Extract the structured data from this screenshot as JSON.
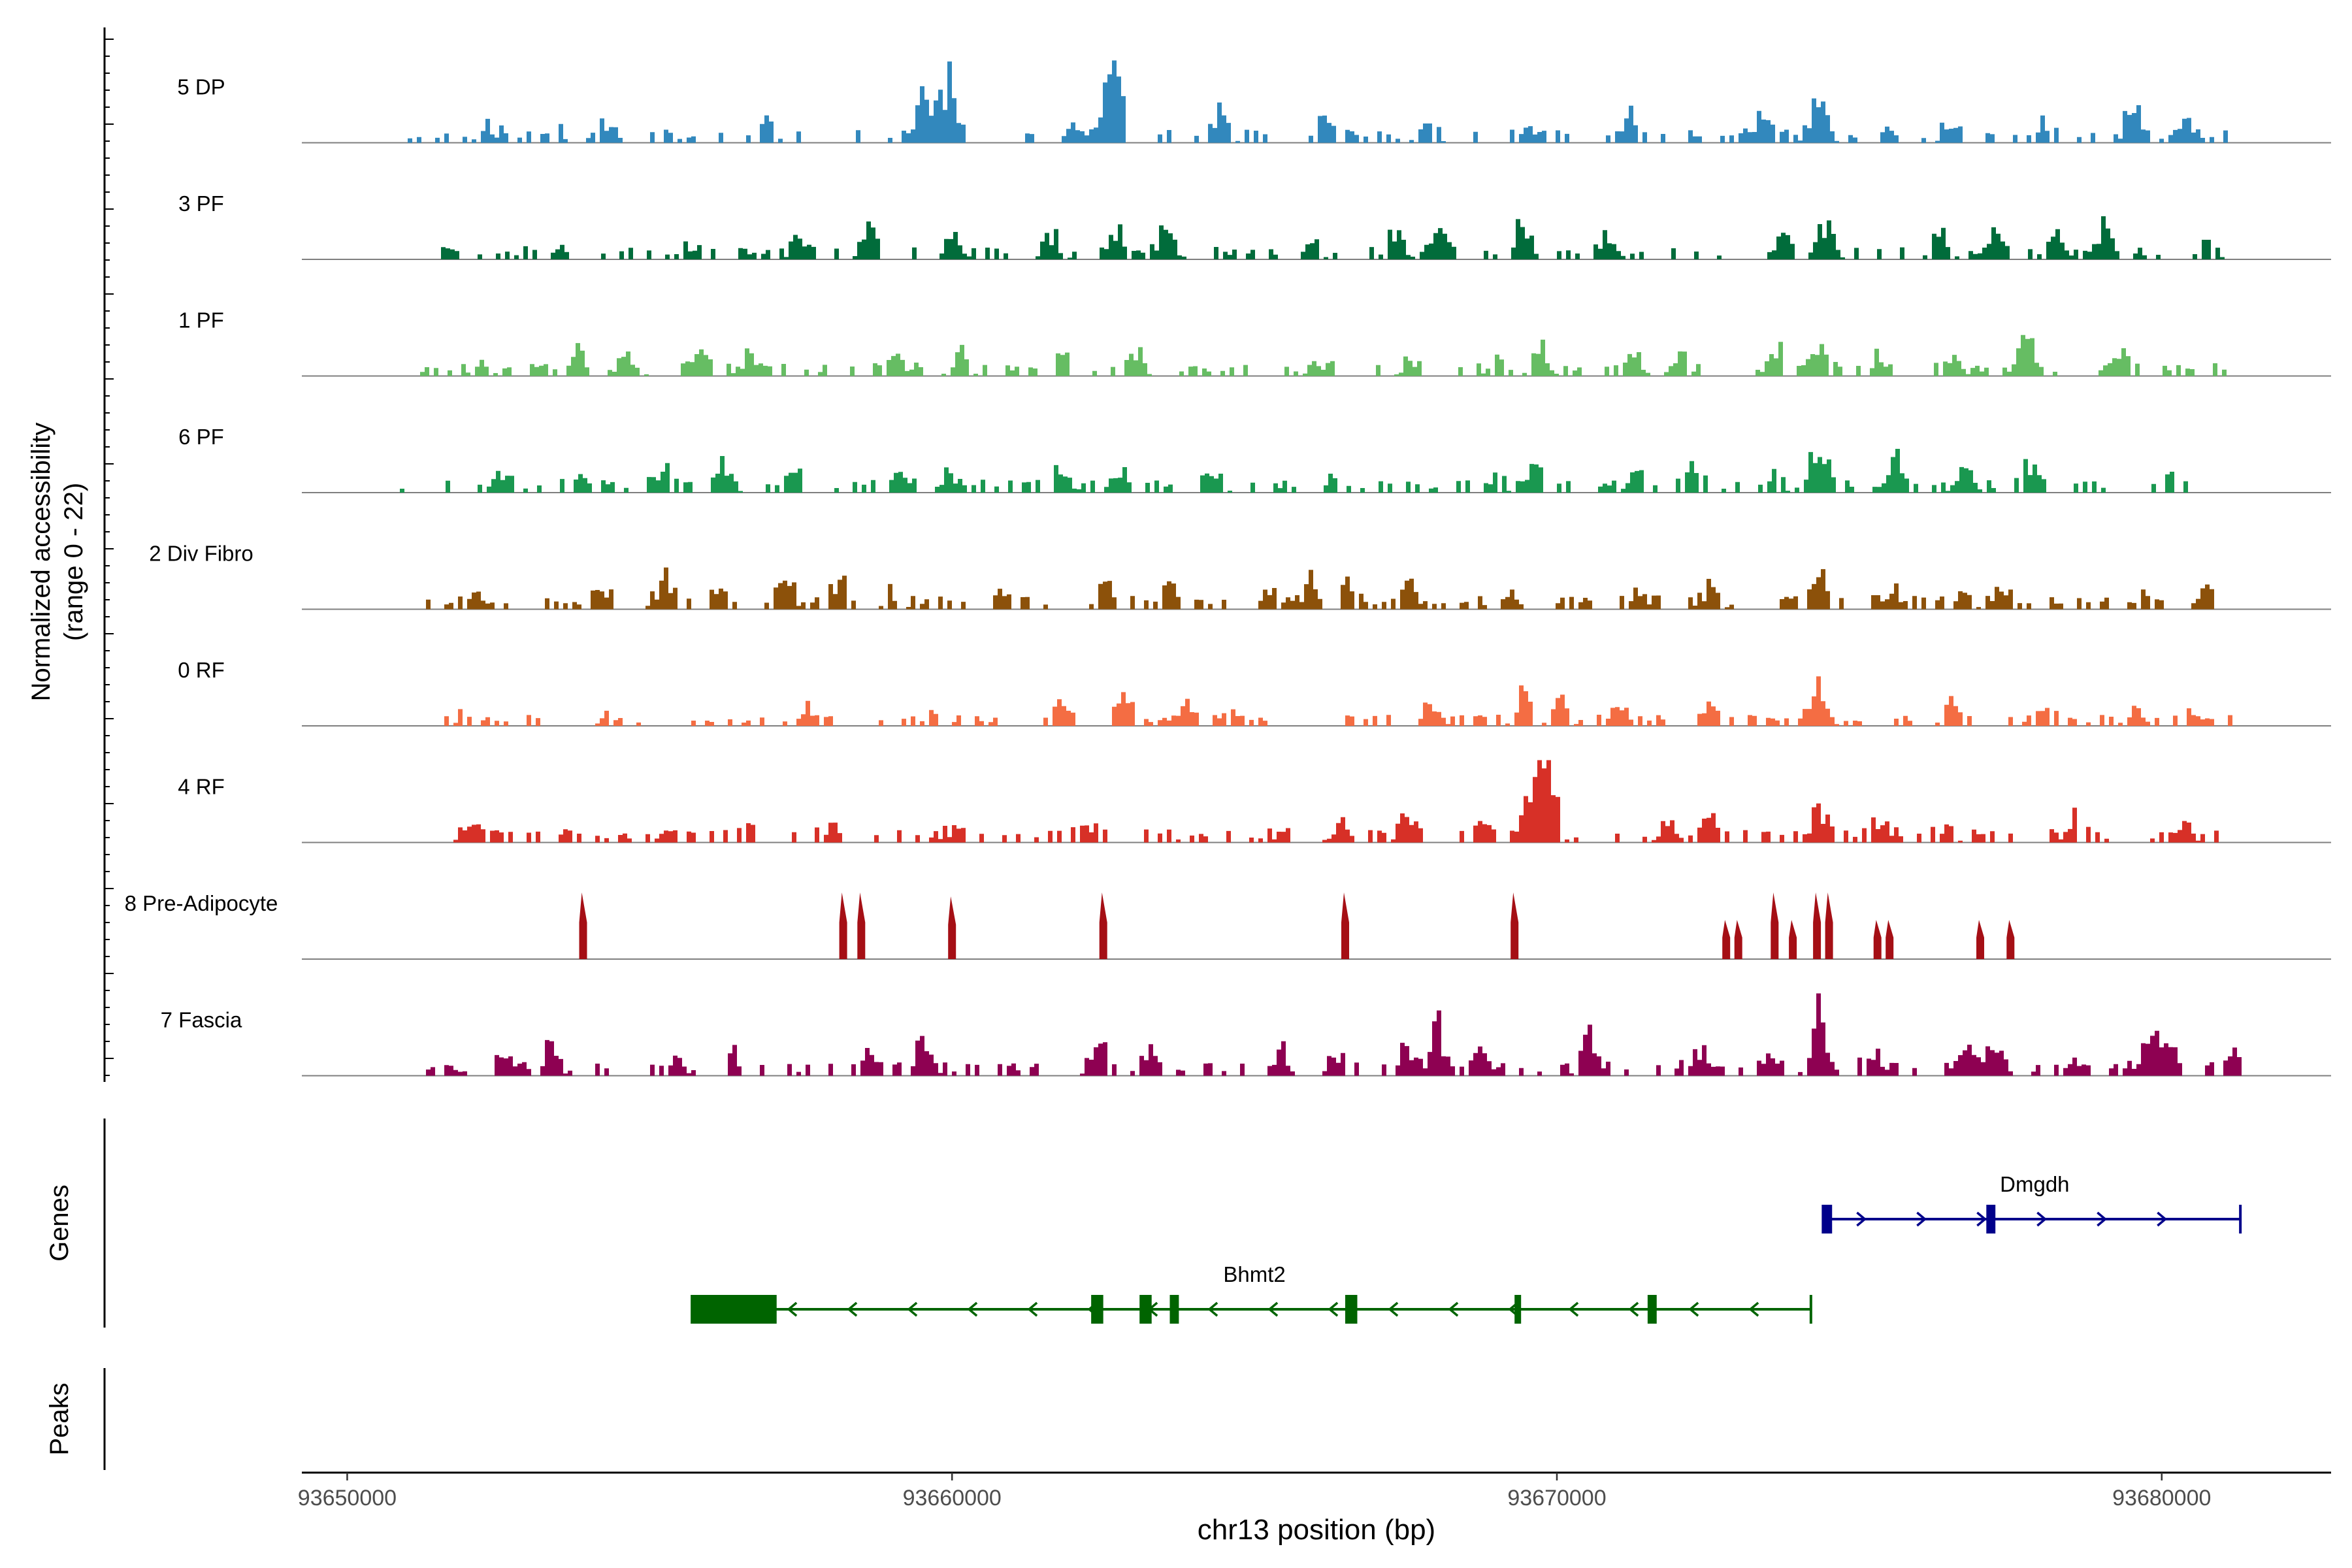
{
  "chart_data": {
    "type": "area",
    "title": "",
    "region": {
      "chromosome": "chr13",
      "start": 93649250,
      "end": 93682800
    },
    "ylabel": [
      "Normalized accessibility",
      "(range 0 - 22)"
    ],
    "yrange": [
      0,
      22
    ],
    "xlabel": "chr13 position (bp)",
    "x_ticks": [
      93650000,
      93660000,
      93670000,
      93680000
    ],
    "x_tick_labels": [
      "93650000",
      "93660000",
      "93670000",
      "93680000"
    ],
    "series": [
      {
        "name": "5 DP",
        "color": "#3288bd",
        "seed": 11,
        "range": [
          93651000,
          93681100
        ],
        "peaks": [
          [
            93652300,
            0.2
          ],
          [
            93653400,
            0.15
          ],
          [
            93654300,
            0.18
          ],
          [
            93656900,
            0.25
          ],
          [
            93659500,
            0.52
          ],
          [
            93659900,
            0.78
          ],
          [
            93662000,
            0.3
          ],
          [
            93662600,
            1.0
          ],
          [
            93664400,
            0.4
          ],
          [
            93666100,
            0.25
          ],
          [
            93667800,
            0.2
          ],
          [
            93669500,
            0.25
          ],
          [
            93671200,
            0.25
          ],
          [
            93673400,
            0.3
          ],
          [
            93674300,
            0.48
          ],
          [
            93675500,
            0.2
          ],
          [
            93676500,
            0.25
          ],
          [
            93678000,
            0.2
          ],
          [
            93679500,
            0.4
          ],
          [
            93680400,
            0.28
          ]
        ],
        "sporadic": 0.12
      },
      {
        "name": "3 PF",
        "color": "#016c3b",
        "seed": 23,
        "range": [
          93651400,
          93681100
        ],
        "peaks": [
          [
            93653500,
            0.18
          ],
          [
            93655600,
            0.18
          ],
          [
            93657500,
            0.3
          ],
          [
            93658600,
            0.4
          ],
          [
            93660000,
            0.25
          ],
          [
            93661600,
            0.3
          ],
          [
            93662700,
            0.38
          ],
          [
            93663500,
            0.4
          ],
          [
            93665900,
            0.28
          ],
          [
            93667300,
            0.35
          ],
          [
            93668000,
            0.3
          ],
          [
            93669400,
            0.35
          ],
          [
            93670800,
            0.35
          ],
          [
            93673700,
            0.3
          ],
          [
            93674400,
            0.42
          ],
          [
            93676300,
            0.35
          ],
          [
            93677200,
            0.38
          ],
          [
            93678200,
            0.38
          ],
          [
            93679000,
            0.4
          ],
          [
            93680700,
            0.2
          ]
        ],
        "sporadic": 0.12
      },
      {
        "name": "1 PF",
        "color": "#66bd63",
        "seed": 37,
        "range": [
          93651200,
          93681100
        ],
        "peaks": [
          [
            93652200,
            0.2
          ],
          [
            93653800,
            0.25
          ],
          [
            93654600,
            0.3
          ],
          [
            93655800,
            0.22
          ],
          [
            93656600,
            0.22
          ],
          [
            93659000,
            0.22
          ],
          [
            93660100,
            0.25
          ],
          [
            93661800,
            0.25
          ],
          [
            93663000,
            0.22
          ],
          [
            93666000,
            0.18
          ],
          [
            93667600,
            0.2
          ],
          [
            93669000,
            0.2
          ],
          [
            93669700,
            0.35
          ],
          [
            93671200,
            0.28
          ],
          [
            93672000,
            0.28
          ],
          [
            93673600,
            0.25
          ],
          [
            93674300,
            0.3
          ],
          [
            93675300,
            0.28
          ],
          [
            93676500,
            0.22
          ],
          [
            93677700,
            0.38
          ],
          [
            93679300,
            0.22
          ]
        ],
        "sporadic": 0.12
      },
      {
        "name": "6 PF",
        "color": "#1a9850",
        "seed": 41,
        "range": [
          93650800,
          93681000
        ],
        "peaks": [
          [
            93652500,
            0.25
          ],
          [
            93653800,
            0.25
          ],
          [
            93655200,
            0.25
          ],
          [
            93656200,
            0.28
          ],
          [
            93657300,
            0.2
          ],
          [
            93659100,
            0.22
          ],
          [
            93659900,
            0.25
          ],
          [
            93661800,
            0.25
          ],
          [
            93662700,
            0.3
          ],
          [
            93664300,
            0.25
          ],
          [
            93666200,
            0.18
          ],
          [
            93668900,
            0.2
          ],
          [
            93669600,
            0.3
          ],
          [
            93671300,
            0.25
          ],
          [
            93672200,
            0.28
          ],
          [
            93673500,
            0.2
          ],
          [
            93674300,
            0.58
          ],
          [
            93675600,
            0.4
          ],
          [
            93676700,
            0.3
          ],
          [
            93677800,
            0.3
          ],
          [
            93680200,
            0.15
          ]
        ],
        "sporadic": 0.12
      },
      {
        "name": "2 Div Fibro",
        "color": "#8c510a",
        "seed": 53,
        "range": [
          93651300,
          93681000
        ],
        "peaks": [
          [
            93652000,
            0.15
          ],
          [
            93654200,
            0.25
          ],
          [
            93655200,
            0.3
          ],
          [
            93656100,
            0.25
          ],
          [
            93657200,
            0.3
          ],
          [
            93658100,
            0.3
          ],
          [
            93659000,
            0.18
          ],
          [
            93660800,
            0.25
          ],
          [
            93662500,
            0.3
          ],
          [
            93663600,
            0.3
          ],
          [
            93665200,
            0.28
          ],
          [
            93665900,
            0.3
          ],
          [
            93666500,
            0.3
          ],
          [
            93667500,
            0.28
          ],
          [
            93669200,
            0.18
          ],
          [
            93671300,
            0.22
          ],
          [
            93672500,
            0.25
          ],
          [
            93674300,
            0.42
          ],
          [
            93675500,
            0.2
          ],
          [
            93676700,
            0.22
          ],
          [
            93677300,
            0.3
          ],
          [
            93679700,
            0.2
          ],
          [
            93680700,
            0.22
          ]
        ],
        "sporadic": 0.12
      },
      {
        "name": "0 RF",
        "color": "#f46d43",
        "seed": 67,
        "range": [
          93651300,
          93681300
        ],
        "peaks": [
          [
            93651900,
            0.12
          ],
          [
            93654300,
            0.15
          ],
          [
            93655600,
            0.12
          ],
          [
            93657600,
            0.18
          ],
          [
            93659600,
            0.15
          ],
          [
            93661800,
            0.25
          ],
          [
            93662800,
            0.3
          ],
          [
            93663800,
            0.28
          ],
          [
            93664700,
            0.22
          ],
          [
            93667900,
            0.3
          ],
          [
            93669400,
            0.38
          ],
          [
            93670000,
            0.28
          ],
          [
            93671000,
            0.22
          ],
          [
            93672500,
            0.22
          ],
          [
            93674300,
            0.48
          ],
          [
            93676500,
            0.28
          ],
          [
            93678000,
            0.22
          ],
          [
            93679500,
            0.2
          ],
          [
            93680500,
            0.2
          ]
        ],
        "sporadic": 0.1
      },
      {
        "name": "4 RF",
        "color": "#d73027",
        "seed": 79,
        "range": [
          93651300,
          93681100
        ],
        "peaks": [
          [
            93652000,
            0.15
          ],
          [
            93653500,
            0.15
          ],
          [
            93655300,
            0.15
          ],
          [
            93656600,
            0.15
          ],
          [
            93658000,
            0.25
          ],
          [
            93660000,
            0.15
          ],
          [
            93662200,
            0.25
          ],
          [
            93663500,
            0.15
          ],
          [
            93665500,
            0.18
          ],
          [
            93666400,
            0.25
          ],
          [
            93667500,
            0.25
          ],
          [
            93668700,
            0.25
          ],
          [
            93669500,
            0.6
          ],
          [
            93669800,
            0.85
          ],
          [
            93671800,
            0.25
          ],
          [
            93672500,
            0.3
          ],
          [
            93674300,
            0.42
          ],
          [
            93675300,
            0.25
          ],
          [
            93676400,
            0.2
          ],
          [
            93678500,
            0.2
          ],
          [
            93680300,
            0.3
          ]
        ],
        "sporadic": 0.12
      },
      {
        "name": "8 Pre-Adipocyte",
        "color": "#a50f15",
        "seed": 83,
        "range": [
          93653700,
          93677700
        ],
        "spikes": [
          [
            93653900,
            0.85
          ],
          [
            93658200,
            0.85
          ],
          [
            93658500,
            0.85
          ],
          [
            93660000,
            0.8
          ],
          [
            93662500,
            0.85
          ],
          [
            93666500,
            0.85
          ],
          [
            93669300,
            0.85
          ],
          [
            93672800,
            0.5
          ],
          [
            93673000,
            0.5
          ],
          [
            93673600,
            0.85
          ],
          [
            93673900,
            0.5
          ],
          [
            93674300,
            0.85
          ],
          [
            93674500,
            0.85
          ],
          [
            93675300,
            0.5
          ],
          [
            93675500,
            0.5
          ],
          [
            93677000,
            0.5
          ],
          [
            93677500,
            0.5
          ]
        ]
      },
      {
        "name": "7 Fascia",
        "color": "#8e0152",
        "seed": 97,
        "range": [
          93651300,
          93681300
        ],
        "peaks": [
          [
            93652600,
            0.28
          ],
          [
            93653300,
            0.28
          ],
          [
            93655400,
            0.18
          ],
          [
            93656400,
            0.2
          ],
          [
            93658600,
            0.28
          ],
          [
            93659500,
            0.38
          ],
          [
            93662400,
            0.3
          ],
          [
            93663300,
            0.3
          ],
          [
            93665400,
            0.3
          ],
          [
            93666300,
            0.28
          ],
          [
            93667500,
            0.3
          ],
          [
            93668000,
            0.55
          ],
          [
            93668700,
            0.28
          ],
          [
            93670500,
            0.45
          ],
          [
            93672300,
            0.28
          ],
          [
            93673500,
            0.25
          ],
          [
            93674300,
            0.78
          ],
          [
            93675200,
            0.25
          ],
          [
            93676800,
            0.35
          ],
          [
            93677200,
            0.45
          ],
          [
            93678500,
            0.25
          ],
          [
            93679700,
            0.3
          ],
          [
            93680000,
            0.48
          ],
          [
            93681100,
            0.2
          ]
        ],
        "sporadic": 0.12
      }
    ],
    "genes": [
      {
        "name": "Dmgdh",
        "strand": "+",
        "start": 93674400,
        "end": 93681300,
        "color": "#00008b",
        "exons": [
          [
            93674400,
            93674550
          ],
          [
            93677100,
            93677250
          ]
        ]
      },
      {
        "name": "Bhmt2",
        "strand": "-",
        "start": 93655700,
        "end": 93674200,
        "color": "#006400",
        "exons": [
          [
            93655700,
            93657100
          ],
          [
            93662300,
            93662500
          ],
          [
            93663100,
            93663300
          ],
          [
            93663600,
            93663750
          ],
          [
            93666500,
            93666700
          ],
          [
            93669300,
            93669400
          ],
          [
            93671500,
            93671650
          ]
        ]
      }
    ],
    "panels": {
      "genes_label": "Genes",
      "peaks_label": "Peaks"
    },
    "peaks": []
  }
}
